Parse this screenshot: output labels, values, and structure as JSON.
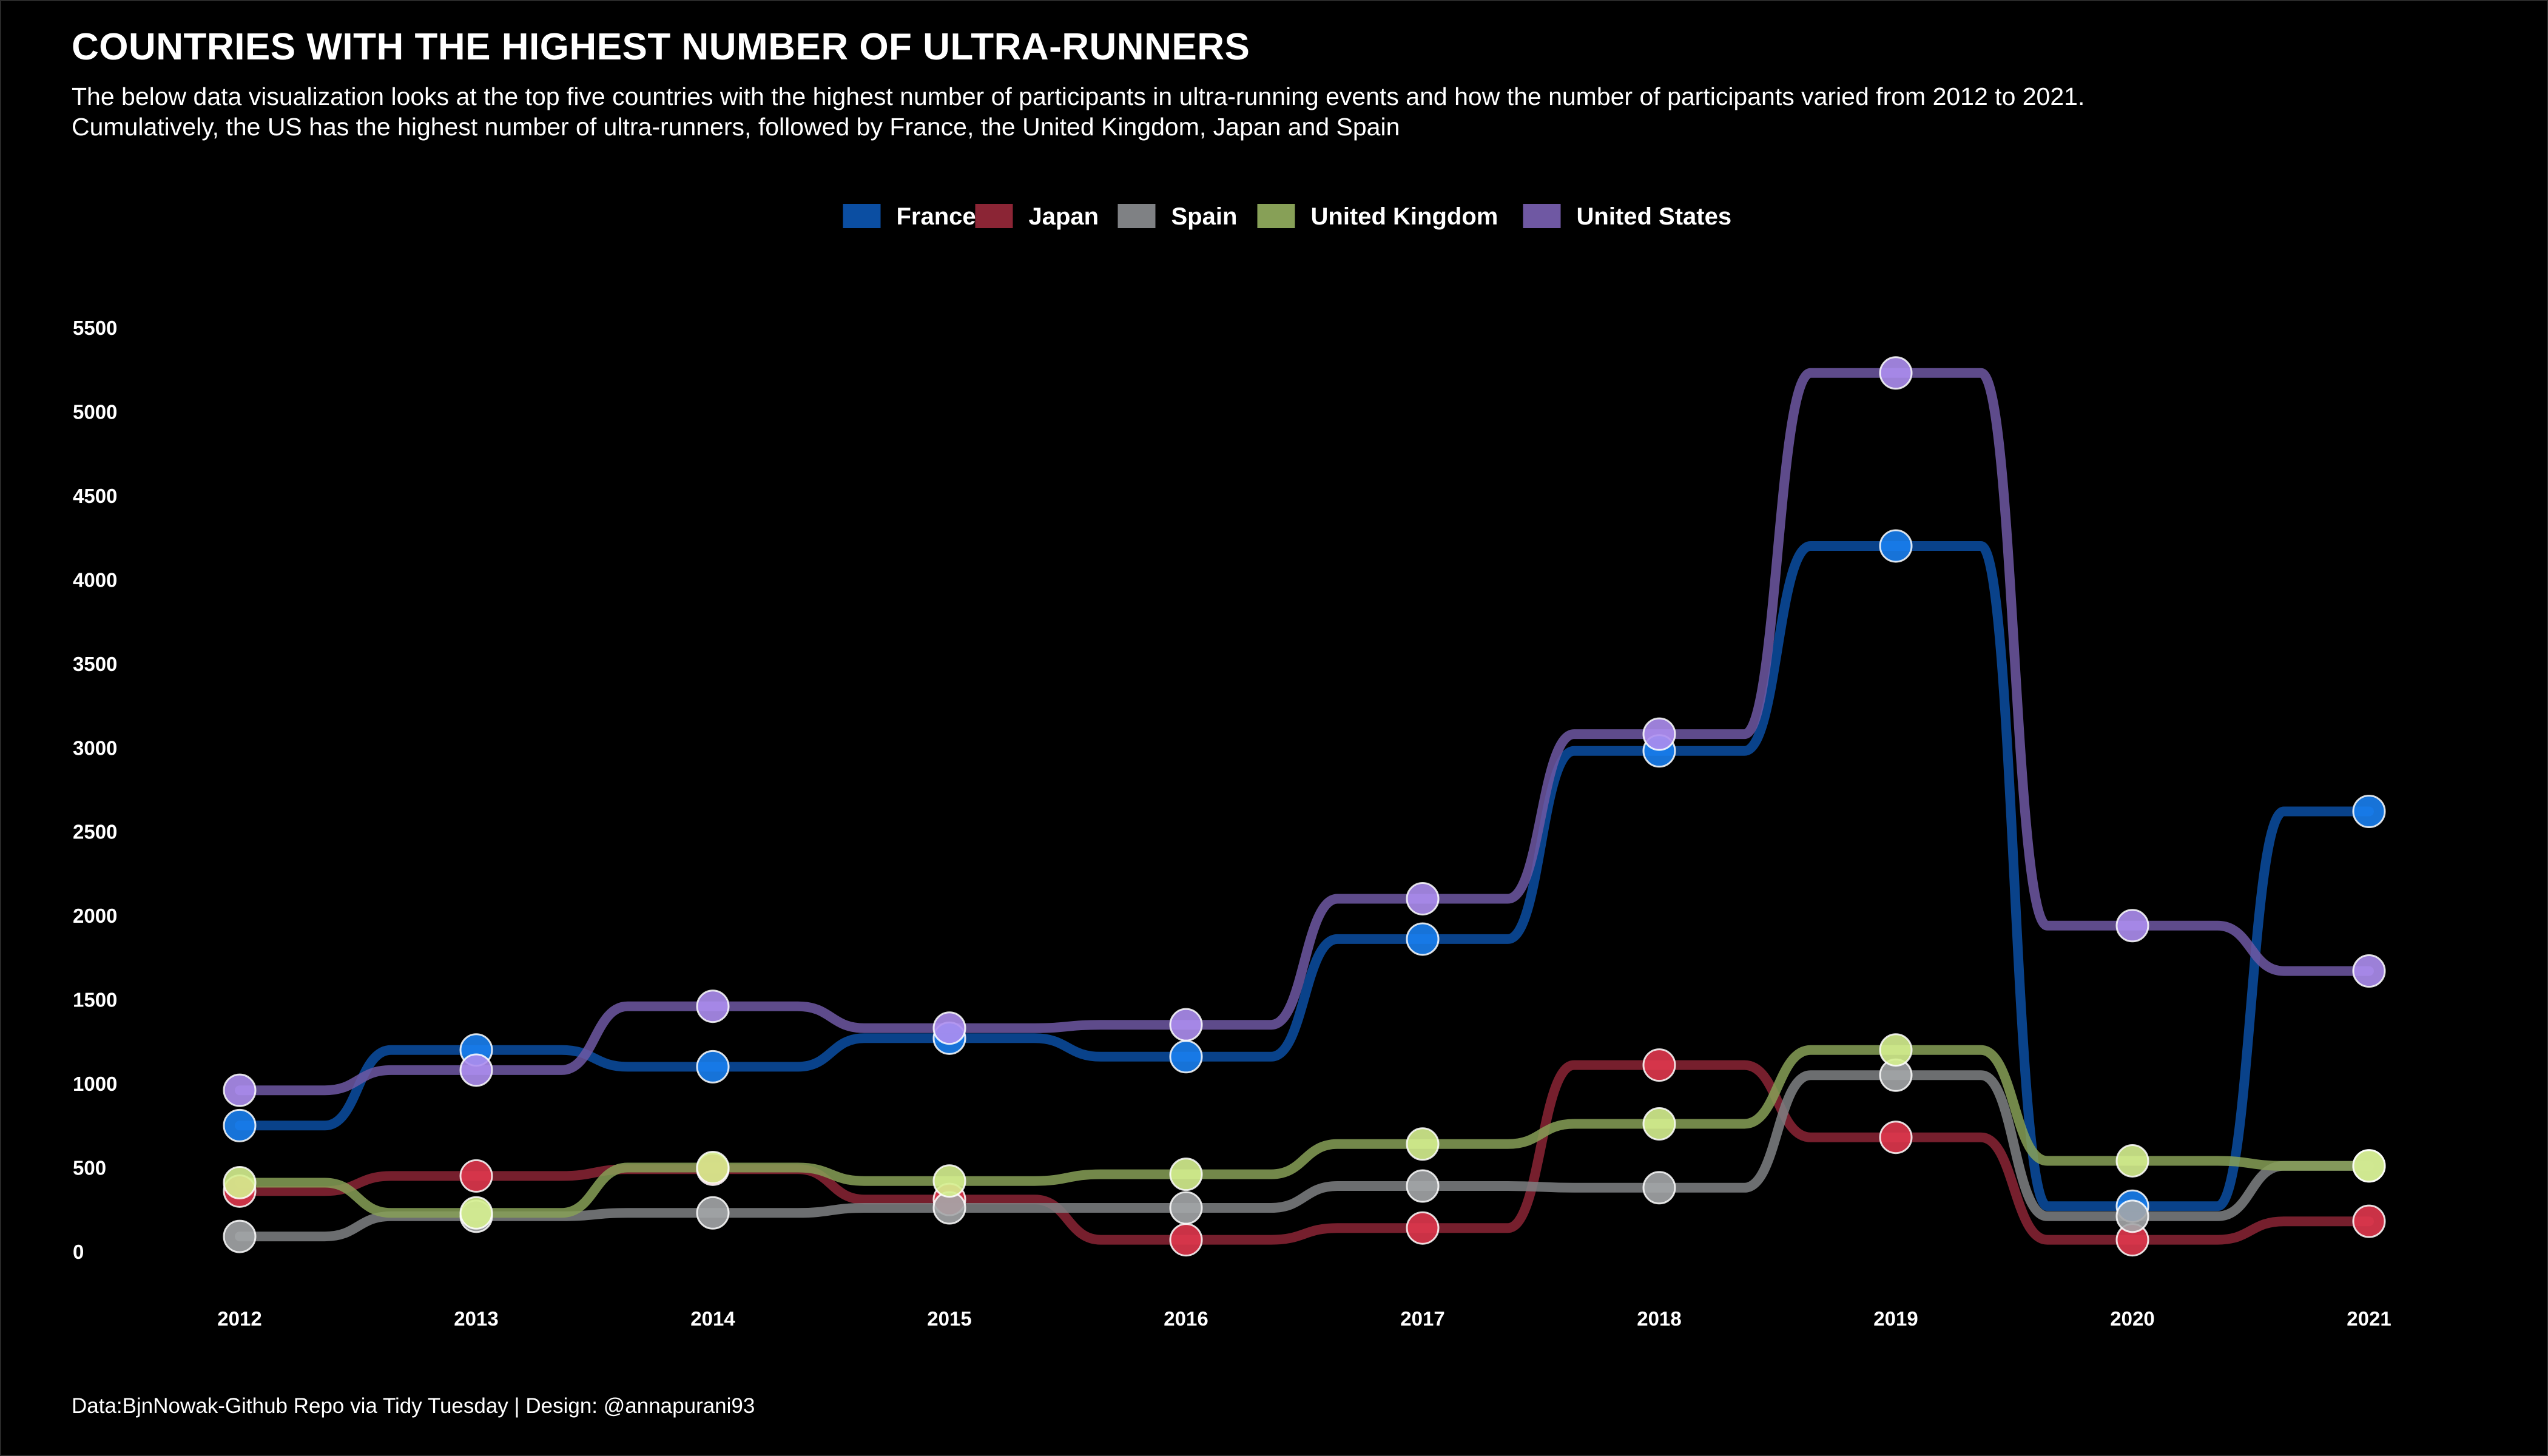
{
  "chart_data": {
    "type": "line",
    "title": "COUNTRIES WITH THE HIGHEST NUMBER OF ULTRA-RUNNERS",
    "subtitle": "The below data visualization looks at the top five countries with the highest number of participants in ultra-running events and how the number of participants varied from 2012 to 2021. Cumulatively, the US has the highest number of ultra-runners, followed by France, the United Kingdom, Japan and Spain",
    "caption": "Data:BjnNowak-Github Repo via Tidy Tuesday | Design: @annapurani93",
    "xlabel": "",
    "ylabel": "",
    "x": [
      2012,
      2013,
      2014,
      2015,
      2016,
      2017,
      2018,
      2019,
      2020,
      2021
    ],
    "ylim": [
      0,
      5500
    ],
    "yticks": [
      0,
      500,
      1000,
      1500,
      2000,
      2500,
      3000,
      3500,
      4000,
      4500,
      5000,
      5500
    ],
    "grid": false,
    "legend_position": "top",
    "series": [
      {
        "name": "France",
        "line_color": "#0b4ea2",
        "point_color": "#1a7ff0",
        "values": [
          750,
          1200,
          1100,
          1270,
          1160,
          1860,
          2980,
          4200,
          270,
          2620
        ]
      },
      {
        "name": "Japan",
        "line_color": "#8b2535",
        "point_color": "#e0374e",
        "values": [
          360,
          450,
          490,
          310,
          70,
          140,
          1110,
          680,
          70,
          180
        ]
      },
      {
        "name": "Spain",
        "line_color": "#7f8184",
        "point_color": "#a4a6a9",
        "values": [
          90,
          210,
          230,
          260,
          260,
          390,
          380,
          1050,
          210,
          510
        ]
      },
      {
        "name": "United Kingdom",
        "line_color": "#87a057",
        "point_color": "#d5f08f",
        "values": [
          410,
          230,
          500,
          420,
          460,
          640,
          760,
          1200,
          540,
          510
        ]
      },
      {
        "name": "United States",
        "line_color": "#6f58a3",
        "point_color": "#ad8ef0",
        "values": [
          960,
          1080,
          1460,
          1330,
          1350,
          2100,
          3080,
          5230,
          1940,
          1670
        ]
      }
    ]
  }
}
